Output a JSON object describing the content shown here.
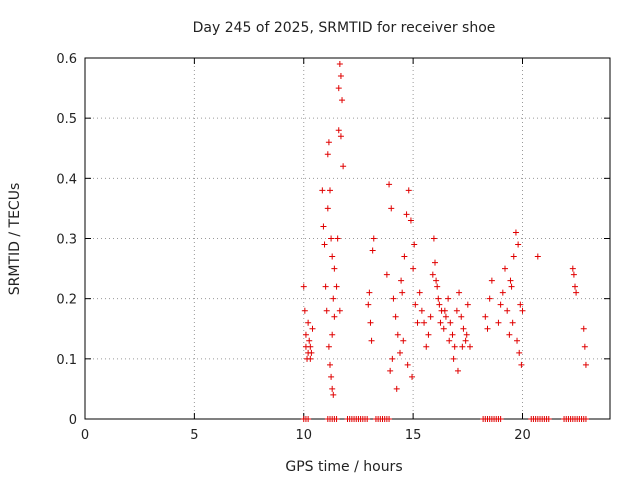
{
  "chart_data": {
    "type": "scatter",
    "title": "Day 245 of 2025, SRMTID for receiver shoe",
    "xlabel": "GPS time / hours",
    "ylabel": "SRMTID / TECUs",
    "xlim": [
      0,
      24
    ],
    "ylim": [
      0,
      0.6
    ],
    "xticks": [
      "0",
      "5",
      "10",
      "15",
      "20"
    ],
    "xtick_values": [
      0,
      5,
      10,
      15,
      20
    ],
    "yticks": [
      "0",
      "0.1",
      "0.2",
      "0.3",
      "0.4",
      "0.5",
      "0.6"
    ],
    "ytick_values": [
      0,
      0.1,
      0.2,
      0.3,
      0.4,
      0.5,
      0.6
    ],
    "grid": true,
    "marker": "+",
    "marker_color": "#e00000",
    "series": [
      {
        "name": "SRMTID",
        "x": [
          10.0,
          10.05,
          10.1,
          10.1,
          10.15,
          10.2,
          10.2,
          10.25,
          10.3,
          10.3,
          10.35,
          10.4,
          10.85,
          10.9,
          10.95,
          11.0,
          11.05,
          11.1,
          11.1,
          11.15,
          11.2,
          11.25,
          11.3,
          11.35,
          11.4,
          11.5,
          11.55,
          11.6,
          11.65,
          11.7,
          11.75,
          11.8,
          11.6,
          11.7,
          11.65,
          11.15,
          11.2,
          11.25,
          11.3,
          11.35,
          11.3,
          11.4,
          12.95,
          13.0,
          13.05,
          13.1,
          13.15,
          13.2,
          13.8,
          13.9,
          14.0,
          14.1,
          14.2,
          14.3,
          14.4,
          14.5,
          14.6,
          14.7,
          14.8,
          14.9,
          15.0,
          15.1,
          15.2,
          13.95,
          14.05,
          14.25,
          14.45,
          14.55,
          14.75,
          14.95,
          15.05,
          15.3,
          15.4,
          15.5,
          15.6,
          15.7,
          15.8,
          15.9,
          16.0,
          16.1,
          16.2,
          16.3,
          16.4,
          16.5,
          16.6,
          16.7,
          16.8,
          16.9,
          17.0,
          17.1,
          17.2,
          17.3,
          17.4,
          17.5,
          17.6,
          15.95,
          16.05,
          16.15,
          16.25,
          16.45,
          16.65,
          16.85,
          17.05,
          17.25,
          17.45,
          18.3,
          18.4,
          18.5,
          18.6,
          18.9,
          19.0,
          19.1,
          19.2,
          19.3,
          19.4,
          19.5,
          19.6,
          19.7,
          19.8,
          19.9,
          20.0,
          19.75,
          19.85,
          19.95,
          19.55,
          19.45,
          20.7,
          22.3,
          22.35,
          22.4,
          22.45,
          22.8,
          22.85,
          22.9,
          10.0,
          10.1,
          10.2,
          11.1,
          11.2,
          11.3,
          11.4,
          11.5,
          12.0,
          12.1,
          12.2,
          12.3,
          12.4,
          12.5,
          12.6,
          12.7,
          12.8,
          12.9,
          13.3,
          13.4,
          13.5,
          13.6,
          13.7,
          13.8,
          13.9,
          18.2,
          18.3,
          18.4,
          18.5,
          18.6,
          18.7,
          18.8,
          18.9,
          19.0,
          20.4,
          20.5,
          20.6,
          20.7,
          20.8,
          20.9,
          21.0,
          21.1,
          21.2,
          21.9,
          22.0,
          22.1,
          22.2,
          22.3,
          22.4,
          22.5,
          22.6,
          22.7,
          22.8,
          22.9
        ],
        "y": [
          0.22,
          0.18,
          0.12,
          0.14,
          0.1,
          0.16,
          0.11,
          0.13,
          0.1,
          0.12,
          0.11,
          0.15,
          0.38,
          0.32,
          0.29,
          0.22,
          0.18,
          0.35,
          0.44,
          0.46,
          0.38,
          0.3,
          0.27,
          0.2,
          0.17,
          0.22,
          0.3,
          0.48,
          0.59,
          0.57,
          0.53,
          0.42,
          0.55,
          0.47,
          0.18,
          0.12,
          0.09,
          0.07,
          0.05,
          0.04,
          0.14,
          0.25,
          0.19,
          0.21,
          0.16,
          0.13,
          0.28,
          0.3,
          0.24,
          0.39,
          0.35,
          0.2,
          0.17,
          0.14,
          0.11,
          0.21,
          0.27,
          0.34,
          0.38,
          0.33,
          0.25,
          0.19,
          0.16,
          0.08,
          0.1,
          0.05,
          0.23,
          0.13,
          0.09,
          0.07,
          0.29,
          0.21,
          0.18,
          0.16,
          0.12,
          0.14,
          0.17,
          0.24,
          0.26,
          0.22,
          0.19,
          0.18,
          0.15,
          0.17,
          0.2,
          0.16,
          0.14,
          0.12,
          0.18,
          0.21,
          0.17,
          0.15,
          0.13,
          0.19,
          0.12,
          0.3,
          0.23,
          0.2,
          0.16,
          0.18,
          0.13,
          0.1,
          0.08,
          0.12,
          0.14,
          0.17,
          0.15,
          0.2,
          0.23,
          0.16,
          0.19,
          0.21,
          0.25,
          0.18,
          0.14,
          0.22,
          0.27,
          0.31,
          0.29,
          0.19,
          0.18,
          0.13,
          0.11,
          0.09,
          0.16,
          0.23,
          0.27,
          0.25,
          0.24,
          0.22,
          0.21,
          0.15,
          0.12,
          0.09,
          0,
          0,
          0,
          0,
          0,
          0,
          0,
          0,
          0,
          0,
          0,
          0,
          0,
          0,
          0,
          0,
          0,
          0,
          0,
          0,
          0,
          0,
          0,
          0,
          0,
          0,
          0,
          0,
          0,
          0,
          0,
          0,
          0,
          0,
          0,
          0,
          0,
          0,
          0,
          0,
          0,
          0,
          0,
          0,
          0,
          0,
          0,
          0,
          0,
          0,
          0,
          0,
          0,
          0
        ]
      }
    ]
  }
}
